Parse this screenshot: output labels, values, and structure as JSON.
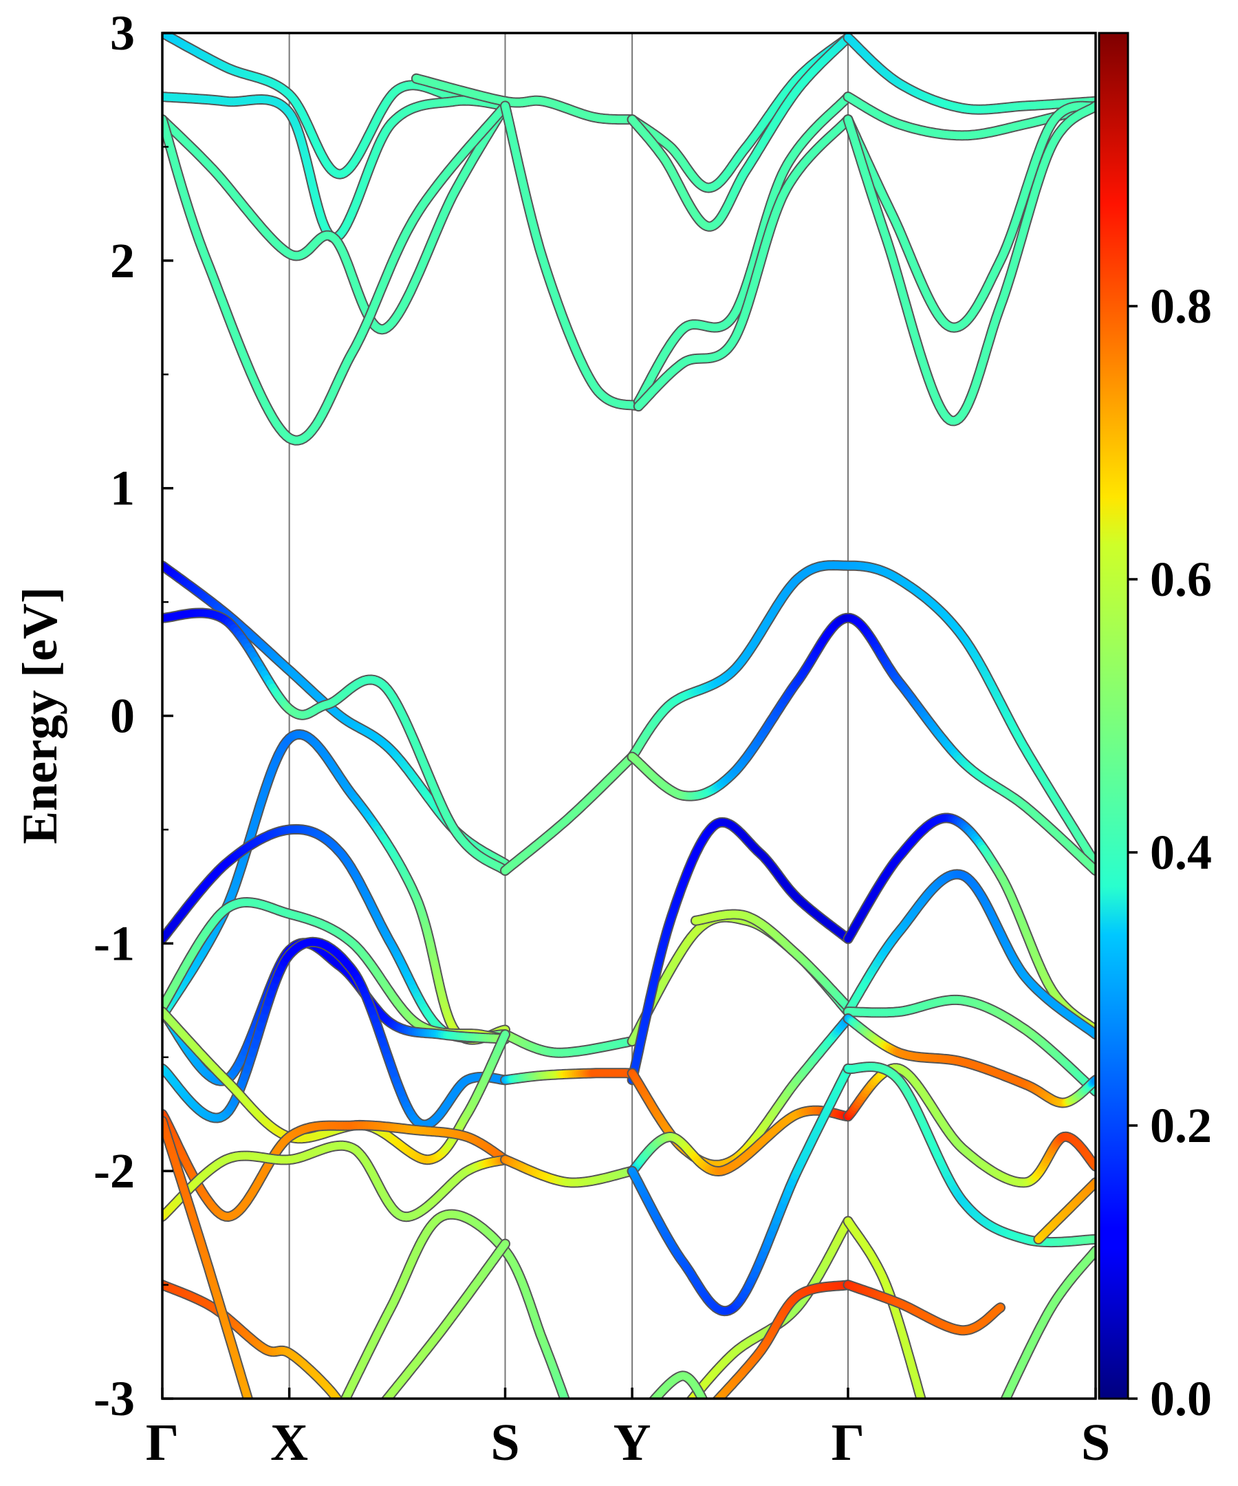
{
  "chart_data": {
    "type": "line",
    "title": "",
    "ylabel": "Energy [eV]",
    "xlabel": "",
    "ylim": [
      -3,
      3
    ],
    "xlim": [
      0,
      7.35
    ],
    "y_ticks": [
      {
        "value": -3,
        "label": "-3"
      },
      {
        "value": -2,
        "label": "-2"
      },
      {
        "value": -1,
        "label": "-1"
      },
      {
        "value": 0,
        "label": "0"
      },
      {
        "value": 1,
        "label": "1"
      },
      {
        "value": 2,
        "label": "2"
      },
      {
        "value": 3,
        "label": "3"
      }
    ],
    "k_points": [
      {
        "label": "Γ",
        "x": 0
      },
      {
        "label": "X",
        "x": 1.0
      },
      {
        "label": "S",
        "x": 2.7
      },
      {
        "label": "Y",
        "x": 3.7
      },
      {
        "label": "Γ",
        "x": 5.4
      },
      {
        "label": "S",
        "x": 7.35
      }
    ],
    "colorbar": {
      "colormap": "jet",
      "min": 0.0,
      "max": 1.0,
      "ticks": [
        {
          "value": 0.0,
          "label": "0.0"
        },
        {
          "value": 0.2,
          "label": "0.2"
        },
        {
          "value": 0.4,
          "label": "0.4"
        },
        {
          "value": 0.6,
          "label": "0.6"
        },
        {
          "value": 0.8,
          "label": "0.8"
        }
      ]
    },
    "grid": false,
    "legend": "none",
    "series": [
      {
        "x": [
          0,
          0.5,
          1.0,
          1.4,
          1.85,
          2.3,
          2.7
        ],
        "y": [
          3.0,
          2.85,
          2.73,
          2.38,
          2.75,
          2.72,
          2.68
        ],
        "w": [
          0.34,
          0.36,
          0.37,
          0.38,
          0.4,
          0.42,
          0.42
        ]
      },
      {
        "x": [
          0,
          0.5,
          1.0,
          1.35,
          1.8,
          2.3,
          2.7
        ],
        "y": [
          2.72,
          2.7,
          2.65,
          2.1,
          2.6,
          2.7,
          2.68
        ],
        "w": [
          0.36,
          0.36,
          0.36,
          0.38,
          0.4,
          0.42,
          0.42
        ]
      },
      {
        "x": [
          0,
          0.4,
          1.0,
          1.35,
          1.75,
          2.3,
          2.7
        ],
        "y": [
          2.62,
          2.4,
          2.03,
          2.1,
          1.7,
          2.3,
          2.68
        ],
        "w": [
          0.42,
          0.42,
          0.42,
          0.42,
          0.42,
          0.42,
          0.42
        ]
      },
      {
        "x": [
          0,
          0.35,
          1.0,
          1.5,
          2.0,
          2.7
        ],
        "y": [
          2.62,
          2.0,
          1.22,
          1.6,
          2.2,
          2.68
        ],
        "w": [
          0.42,
          0.42,
          0.42,
          0.42,
          0.42,
          0.42
        ]
      },
      {
        "x": [
          2.0,
          2.7,
          3.0,
          3.4,
          3.7
        ],
        "y": [
          2.8,
          2.7,
          2.7,
          2.63,
          2.62
        ],
        "w": [
          0.43,
          0.43,
          0.43,
          0.43,
          0.43
        ]
      },
      {
        "x": [
          2.7,
          3.0,
          3.4,
          3.75
        ],
        "y": [
          2.68,
          2.0,
          1.45,
          1.36
        ],
        "w": [
          0.42,
          0.42,
          0.42,
          0.42
        ]
      },
      {
        "x": [
          3.7,
          4.0,
          4.3,
          4.6,
          5.0,
          5.4
        ],
        "y": [
          2.62,
          2.5,
          2.32,
          2.5,
          2.8,
          2.98
        ],
        "w": [
          0.43,
          0.43,
          0.42,
          0.4,
          0.38,
          0.35
        ]
      },
      {
        "x": [
          3.7,
          3.95,
          4.3,
          4.6,
          5.0,
          5.4
        ],
        "y": [
          2.62,
          2.45,
          2.15,
          2.4,
          2.75,
          2.98
        ],
        "w": [
          0.43,
          0.43,
          0.43,
          0.4,
          0.38,
          0.36
        ]
      },
      {
        "x": [
          3.75,
          4.1,
          4.5,
          4.9,
          5.4
        ],
        "y": [
          1.38,
          1.7,
          1.76,
          2.4,
          2.72
        ],
        "w": [
          0.42,
          0.42,
          0.42,
          0.42,
          0.42
        ]
      },
      {
        "x": [
          3.75,
          4.1,
          4.5,
          4.9,
          5.4
        ],
        "y": [
          1.36,
          1.55,
          1.65,
          2.3,
          2.62
        ],
        "w": [
          0.42,
          0.42,
          0.42,
          0.42,
          0.42
        ]
      },
      {
        "x": [
          5.4,
          5.8,
          6.3,
          6.8,
          7.35
        ],
        "y": [
          2.98,
          2.78,
          2.67,
          2.68,
          2.7
        ],
        "w": [
          0.35,
          0.36,
          0.38,
          0.4,
          0.42
        ]
      },
      {
        "x": [
          5.4,
          5.8,
          6.3,
          6.8,
          7.35
        ],
        "y": [
          2.72,
          2.6,
          2.55,
          2.6,
          2.68
        ],
        "w": [
          0.42,
          0.42,
          0.42,
          0.42,
          0.42
        ]
      },
      {
        "x": [
          5.4,
          5.75,
          6.2,
          6.6,
          7.0,
          7.35
        ],
        "y": [
          2.62,
          2.2,
          1.71,
          2.0,
          2.6,
          2.68
        ],
        "w": [
          0.42,
          0.42,
          0.42,
          0.42,
          0.42,
          0.42
        ]
      },
      {
        "x": [
          5.4,
          5.7,
          6.2,
          6.6,
          7.0,
          7.35
        ],
        "y": [
          2.62,
          2.1,
          1.3,
          1.8,
          2.5,
          2.68
        ],
        "w": [
          0.42,
          0.42,
          0.42,
          0.42,
          0.42,
          0.42
        ]
      },
      {
        "x": [
          0,
          0.5,
          1.0,
          1.4,
          1.8,
          2.3,
          2.7
        ],
        "y": [
          0.66,
          0.45,
          0.2,
          0.0,
          -0.15,
          -0.5,
          -0.65
        ],
        "w": [
          0.1,
          0.22,
          0.3,
          0.32,
          0.34,
          0.4,
          0.44
        ]
      },
      {
        "x": [
          0,
          0.5,
          1.0,
          1.3,
          1.75,
          2.3,
          2.7
        ],
        "y": [
          0.43,
          0.42,
          0.03,
          0.05,
          0.13,
          -0.5,
          -0.68
        ],
        "w": [
          0.1,
          0.15,
          0.45,
          0.42,
          0.4,
          0.42,
          0.44
        ]
      },
      {
        "x": [
          2.7,
          3.2,
          3.7
        ],
        "y": [
          -0.68,
          -0.45,
          -0.18
        ],
        "w": [
          0.46,
          0.46,
          0.48
        ]
      },
      {
        "x": [
          3.7,
          4.0,
          4.5,
          5.0,
          5.4,
          5.8,
          6.3,
          6.8,
          7.35
        ],
        "y": [
          -0.18,
          0.05,
          0.2,
          0.6,
          0.66,
          0.6,
          0.35,
          -0.15,
          -0.65
        ],
        "w": [
          0.46,
          0.4,
          0.32,
          0.3,
          0.3,
          0.32,
          0.34,
          0.38,
          0.44
        ]
      },
      {
        "x": [
          3.7,
          4.1,
          4.5,
          5.0,
          5.4,
          5.8,
          6.3,
          6.8,
          7.35
        ],
        "y": [
          -0.18,
          -0.35,
          -0.25,
          0.15,
          0.43,
          0.15,
          -0.2,
          -0.4,
          -0.68
        ],
        "w": [
          0.5,
          0.48,
          0.3,
          0.18,
          0.08,
          0.22,
          0.36,
          0.44,
          0.46
        ]
      },
      {
        "x": [
          0,
          0.5,
          1.0,
          1.5,
          2.0,
          2.3,
          2.7
        ],
        "y": [
          -1.32,
          -0.85,
          -0.1,
          -0.35,
          -0.8,
          -1.38,
          -1.38
        ],
        "w": [
          0.38,
          0.3,
          0.25,
          0.3,
          0.45,
          0.62,
          0.6
        ]
      },
      {
        "x": [
          0,
          0.5,
          1.0,
          1.4,
          1.8,
          2.2,
          2.7
        ],
        "y": [
          -0.98,
          -0.65,
          -0.5,
          -0.6,
          -1.0,
          -1.38,
          -1.4
        ],
        "w": [
          0.08,
          0.12,
          0.2,
          0.25,
          0.3,
          0.4,
          0.5
        ]
      },
      {
        "x": [
          0,
          0.5,
          1.0,
          1.5,
          2.0,
          2.5,
          2.7
        ],
        "y": [
          -1.28,
          -0.85,
          -0.87,
          -1.0,
          -1.35,
          -1.4,
          -1.42
        ],
        "w": [
          0.5,
          0.42,
          0.42,
          0.44,
          0.52,
          0.62,
          0.6
        ]
      },
      {
        "x": [
          0,
          0.5,
          1.0,
          1.4,
          1.8,
          2.2,
          2.7
        ],
        "y": [
          -1.3,
          -1.6,
          -1.03,
          -1.1,
          -1.35,
          -1.4,
          -1.42
        ],
        "w": [
          0.35,
          0.28,
          0.12,
          0.1,
          0.15,
          0.35,
          0.55
        ]
      },
      {
        "x": [
          2.7,
          3.1,
          3.7
        ],
        "y": [
          -1.4,
          -1.48,
          -1.43
        ],
        "w": [
          0.55,
          0.45,
          0.42
        ]
      },
      {
        "x": [
          3.7,
          4.2,
          4.6,
          5.0,
          5.4
        ],
        "y": [
          -1.43,
          -0.95,
          -0.9,
          -1.05,
          -1.3
        ],
        "w": [
          0.55,
          0.6,
          0.58,
          0.5,
          0.42
        ]
      },
      {
        "x": [
          3.7,
          4.0,
          4.35,
          4.7,
          5.0,
          5.4
        ],
        "y": [
          -1.6,
          -0.9,
          -0.48,
          -0.6,
          -0.8,
          -0.98
        ],
        "w": [
          0.2,
          0.15,
          0.1,
          0.08,
          0.08,
          0.08
        ]
      },
      {
        "x": [
          4.2,
          4.6,
          5.0,
          5.4
        ],
        "y": [
          -0.9,
          -0.88,
          -1.05,
          -1.28
        ],
        "w": [
          0.6,
          0.58,
          0.52,
          0.42
        ]
      },
      {
        "x": [
          5.4,
          5.8,
          6.2,
          6.6,
          7.0,
          7.35
        ],
        "y": [
          -0.98,
          -0.62,
          -0.45,
          -0.7,
          -1.2,
          -1.38
        ],
        "w": [
          0.08,
          0.1,
          0.15,
          0.48,
          0.55,
          0.62
        ]
      },
      {
        "x": [
          5.4,
          5.8,
          6.3,
          6.8,
          7.35
        ],
        "y": [
          -1.3,
          -0.95,
          -0.7,
          -1.15,
          -1.4
        ],
        "w": [
          0.42,
          0.32,
          0.25,
          0.3,
          0.3
        ]
      },
      {
        "x": [
          5.4,
          5.8,
          6.3,
          6.8,
          7.35
        ],
        "y": [
          -1.3,
          -1.3,
          -1.25,
          -1.38,
          -1.65
        ],
        "w": [
          0.42,
          0.42,
          0.45,
          0.5,
          0.4
        ]
      },
      {
        "x": [
          0,
          0.5,
          1.0,
          1.5,
          2.0,
          2.4,
          2.7
        ],
        "y": [
          -1.55,
          -1.75,
          -1.05,
          -1.12,
          -1.78,
          -1.6,
          -1.6
        ],
        "w": [
          0.35,
          0.3,
          0.12,
          0.12,
          0.28,
          0.28,
          0.28
        ]
      },
      {
        "x": [
          2.7,
          3.0,
          3.4,
          3.7
        ],
        "y": [
          -1.6,
          -1.58,
          -1.57,
          -1.57
        ],
        "w": [
          0.3,
          0.55,
          0.8,
          0.8
        ]
      },
      {
        "x": [
          3.7,
          4.1,
          4.5,
          5.0,
          5.4
        ],
        "y": [
          -1.57,
          -1.9,
          -1.95,
          -1.6,
          -1.33
        ],
        "w": [
          0.8,
          0.72,
          0.7,
          0.5,
          0.3
        ]
      },
      {
        "x": [
          5.4,
          5.8,
          6.3,
          6.8,
          7.1,
          7.35
        ],
        "y": [
          -1.33,
          -1.48,
          -1.52,
          -1.62,
          -1.7,
          -1.6
        ],
        "w": [
          0.3,
          0.75,
          0.78,
          0.78,
          0.7,
          0.28
        ]
      },
      {
        "x": [
          0,
          0.5,
          1.0,
          1.6,
          2.1,
          2.4,
          2.7
        ],
        "y": [
          -1.3,
          -1.6,
          -1.85,
          -1.8,
          -1.95,
          -1.75,
          -1.4
        ],
        "w": [
          0.55,
          0.6,
          0.65,
          0.62,
          0.7,
          0.55,
          0.45
        ]
      },
      {
        "x": [
          0,
          0.5,
          1.0,
          1.5,
          2.0,
          2.4,
          2.7
        ],
        "y": [
          -1.75,
          -2.2,
          -1.85,
          -1.8,
          -1.82,
          -1.85,
          -1.95
        ],
        "w": [
          0.82,
          0.75,
          0.75,
          0.78,
          0.72,
          0.75,
          0.78
        ]
      },
      {
        "x": [
          0,
          0.5,
          1.0,
          1.5,
          1.9,
          2.4,
          2.7
        ],
        "y": [
          -2.2,
          -1.95,
          -1.95,
          -1.9,
          -2.2,
          -2.0,
          -1.95
        ],
        "w": [
          0.65,
          0.6,
          0.6,
          0.58,
          0.55,
          0.58,
          0.76
        ]
      },
      {
        "x": [
          2.7,
          3.2,
          3.7
        ],
        "y": [
          -1.95,
          -2.05,
          -2.0
        ],
        "w": [
          0.76,
          0.62,
          0.55
        ]
      },
      {
        "x": [
          3.7,
          4.0,
          4.4,
          5.0,
          5.4
        ],
        "y": [
          -2.0,
          -1.85,
          -2.0,
          -1.75,
          -1.76
        ],
        "w": [
          0.3,
          0.55,
          0.75,
          0.72,
          0.88
        ]
      },
      {
        "x": [
          5.4,
          5.8,
          6.3,
          6.8,
          7.1,
          7.35
        ],
        "y": [
          -1.76,
          -1.55,
          -1.9,
          -2.05,
          -1.85,
          -1.98
        ],
        "w": [
          0.88,
          0.58,
          0.55,
          0.6,
          0.82,
          0.8
        ]
      },
      {
        "x": [
          3.7,
          4.1,
          4.5,
          5.0,
          5.4
        ],
        "y": [
          -2.0,
          -2.4,
          -2.6,
          -2.0,
          -1.55
        ],
        "w": [
          0.28,
          0.22,
          0.18,
          0.35,
          0.38
        ]
      },
      {
        "x": [
          5.4,
          5.8,
          6.3,
          6.8,
          7.35
        ],
        "y": [
          -1.55,
          -1.6,
          -2.13,
          -2.3,
          -2.3
        ],
        "w": [
          0.38,
          0.42,
          0.35,
          0.38,
          0.45
        ]
      },
      {
        "x": [
          0,
          0.4,
          0.8,
          1.0,
          1.3,
          1.5
        ],
        "y": [
          -2.5,
          -2.6,
          -2.78,
          -2.8,
          -2.95,
          -3.1
        ],
        "w": [
          0.82,
          0.8,
          0.75,
          0.72,
          0.7,
          0.68
        ]
      },
      {
        "x": [
          0,
          0.35,
          0.7
        ],
        "y": [
          -1.78,
          -2.4,
          -3.05
        ],
        "w": [
          0.8,
          0.76,
          0.72
        ]
      },
      {
        "x": [
          1.4,
          1.8,
          2.2,
          2.7,
          3.0,
          3.2
        ],
        "y": [
          -3.05,
          -2.6,
          -2.2,
          -2.35,
          -2.75,
          -3.05
        ],
        "w": [
          0.56,
          0.55,
          0.55,
          0.52,
          0.5,
          0.45
        ]
      },
      {
        "x": [
          1.7,
          2.2,
          2.7
        ],
        "y": [
          -3.05,
          -2.7,
          -2.32
        ],
        "w": [
          0.56,
          0.55,
          0.52
        ]
      },
      {
        "x": [
          4.1,
          4.5,
          5.0,
          5.4
        ],
        "y": [
          -3.05,
          -2.8,
          -2.6,
          -2.22
        ],
        "w": [
          0.65,
          0.6,
          0.55,
          0.62
        ]
      },
      {
        "x": [
          5.4,
          5.7,
          6.0
        ],
        "y": [
          -2.22,
          -2.5,
          -3.05
        ],
        "w": [
          0.62,
          0.62,
          0.6
        ]
      },
      {
        "x": [
          4.3,
          4.7,
          5.0,
          5.4
        ],
        "y": [
          -3.05,
          -2.8,
          -2.55,
          -2.5
        ],
        "w": [
          0.72,
          0.78,
          0.82,
          0.85
        ]
      },
      {
        "x": [
          5.4,
          5.8,
          6.3,
          6.6
        ],
        "y": [
          -2.5,
          -2.58,
          -2.7,
          -2.6
        ],
        "w": [
          0.85,
          0.8,
          0.78,
          0.78
        ]
      },
      {
        "x": [
          3.8,
          4.1,
          4.3
        ],
        "y": [
          -3.05,
          -2.9,
          -3.05
        ],
        "w": [
          0.5,
          0.5,
          0.5
        ]
      },
      {
        "x": [
          6.6,
          7.0,
          7.35
        ],
        "y": [
          -3.05,
          -2.6,
          -2.35
        ],
        "w": [
          0.5,
          0.5,
          0.5
        ]
      },
      {
        "x": [
          6.9,
          7.35
        ],
        "y": [
          -2.3,
          -2.05
        ],
        "w": [
          0.68,
          0.75
        ]
      }
    ]
  }
}
